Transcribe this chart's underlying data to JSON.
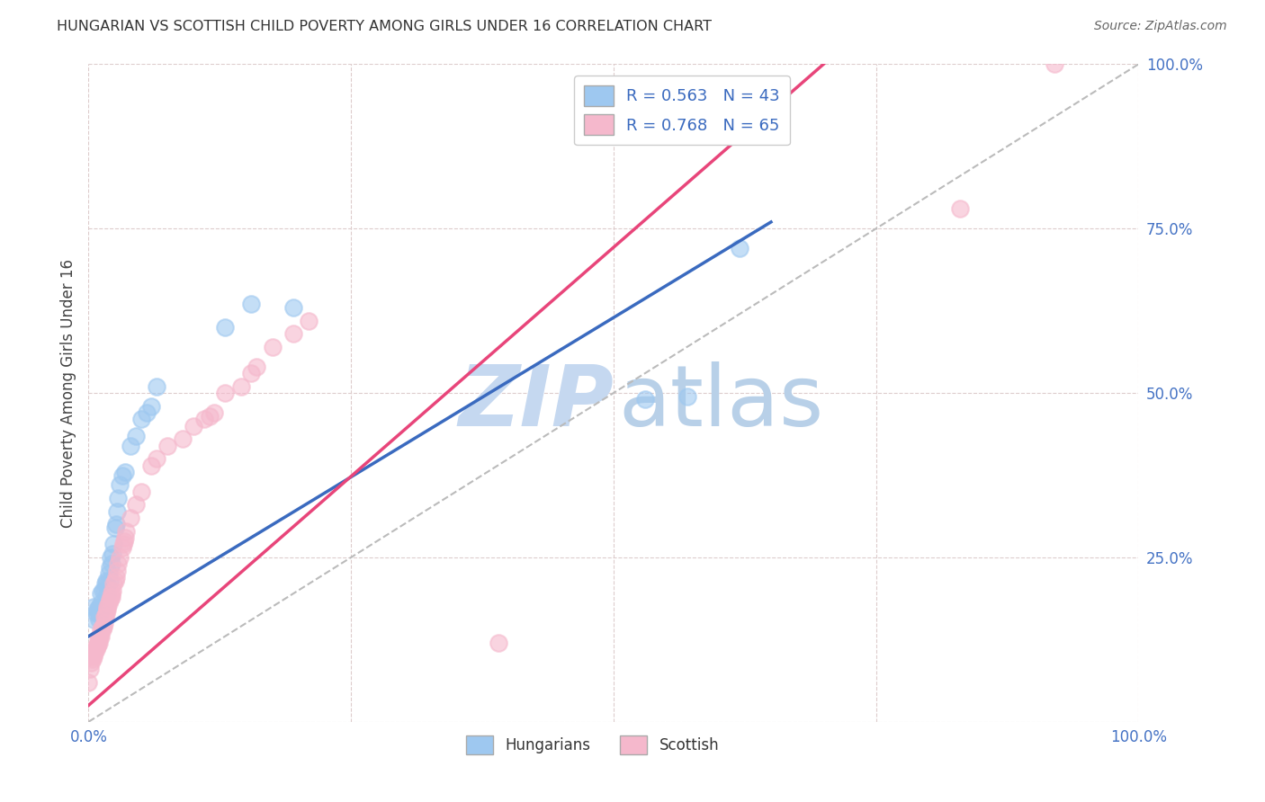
{
  "title": "HUNGARIAN VS SCOTTISH CHILD POVERTY AMONG GIRLS UNDER 16 CORRELATION CHART",
  "source": "Source: ZipAtlas.com",
  "ylabel": "Child Poverty Among Girls Under 16",
  "xlim": [
    0,
    1
  ],
  "ylim": [
    0,
    1
  ],
  "hungarian_R": 0.563,
  "hungarian_N": 43,
  "scottish_R": 0.768,
  "scottish_N": 65,
  "hungarian_color": "#9ec8f0",
  "scottish_color": "#f5b8cc",
  "hungarian_line_color": "#3a6abf",
  "scottish_line_color": "#e8457a",
  "diagonal_color": "#bbbbbb",
  "background_color": "#ffffff",
  "hungarian_x": [
    0.005,
    0.005,
    0.007,
    0.008,
    0.01,
    0.01,
    0.01,
    0.012,
    0.012,
    0.013,
    0.014,
    0.015,
    0.015,
    0.016,
    0.017,
    0.018,
    0.018,
    0.019,
    0.02,
    0.02,
    0.021,
    0.022,
    0.023,
    0.024,
    0.025,
    0.026,
    0.027,
    0.028,
    0.03,
    0.032,
    0.035,
    0.04,
    0.045,
    0.05,
    0.055,
    0.06,
    0.065,
    0.13,
    0.155,
    0.195,
    0.53,
    0.57,
    0.62
  ],
  "hungarian_y": [
    0.155,
    0.175,
    0.165,
    0.17,
    0.155,
    0.165,
    0.175,
    0.18,
    0.195,
    0.2,
    0.175,
    0.18,
    0.2,
    0.21,
    0.215,
    0.195,
    0.21,
    0.225,
    0.215,
    0.235,
    0.25,
    0.24,
    0.255,
    0.27,
    0.295,
    0.3,
    0.32,
    0.34,
    0.36,
    0.375,
    0.38,
    0.42,
    0.435,
    0.46,
    0.47,
    0.48,
    0.51,
    0.6,
    0.635,
    0.63,
    0.49,
    0.495,
    0.72
  ],
  "scottish_x": [
    0.0,
    0.001,
    0.002,
    0.003,
    0.004,
    0.005,
    0.006,
    0.006,
    0.007,
    0.007,
    0.008,
    0.009,
    0.009,
    0.01,
    0.01,
    0.011,
    0.012,
    0.012,
    0.013,
    0.013,
    0.014,
    0.015,
    0.015,
    0.016,
    0.017,
    0.018,
    0.018,
    0.019,
    0.02,
    0.021,
    0.022,
    0.022,
    0.023,
    0.024,
    0.025,
    0.026,
    0.027,
    0.028,
    0.03,
    0.032,
    0.033,
    0.034,
    0.035,
    0.036,
    0.04,
    0.045,
    0.05,
    0.06,
    0.065,
    0.075,
    0.09,
    0.1,
    0.11,
    0.115,
    0.12,
    0.13,
    0.145,
    0.155,
    0.16,
    0.175,
    0.195,
    0.21,
    0.39,
    0.83,
    0.92
  ],
  "scottish_y": [
    0.06,
    0.08,
    0.09,
    0.1,
    0.095,
    0.1,
    0.105,
    0.11,
    0.11,
    0.115,
    0.115,
    0.12,
    0.125,
    0.12,
    0.13,
    0.13,
    0.13,
    0.14,
    0.14,
    0.145,
    0.145,
    0.15,
    0.16,
    0.16,
    0.165,
    0.17,
    0.175,
    0.18,
    0.185,
    0.19,
    0.19,
    0.195,
    0.2,
    0.21,
    0.215,
    0.22,
    0.23,
    0.24,
    0.25,
    0.265,
    0.27,
    0.275,
    0.28,
    0.29,
    0.31,
    0.33,
    0.35,
    0.39,
    0.4,
    0.42,
    0.43,
    0.45,
    0.46,
    0.465,
    0.47,
    0.5,
    0.51,
    0.53,
    0.54,
    0.57,
    0.59,
    0.61,
    0.12,
    0.78,
    1.0
  ],
  "hun_line_x0": 0.0,
  "hun_line_y0": 0.13,
  "hun_line_x1": 0.65,
  "hun_line_y1": 0.76,
  "sco_line_x0": 0.0,
  "sco_line_y0": 0.025,
  "sco_line_x1": 0.7,
  "sco_line_y1": 1.0
}
